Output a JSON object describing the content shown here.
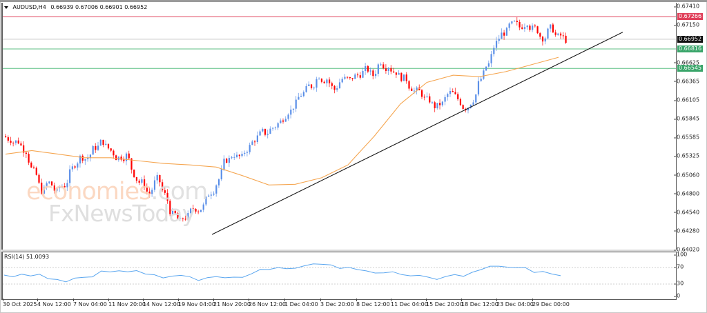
{
  "header": {
    "symbol_label": "AUDUSD,H4",
    "ohlc": "0.66939 0.67006 0.66901 0.66952",
    "collapse_icon": "triangle-down-icon"
  },
  "watermark": {
    "line1_main": "economies",
    "line1_suffix": ".com",
    "line2": "FxNewsToday"
  },
  "rsi_header": "RSI(14) 51.0093",
  "colors": {
    "bull": "#5b8fe8",
    "bear": "#ff0000",
    "ma": "#f5a651",
    "trendline": "#1a1a1a",
    "resistance": "#e0405a",
    "support": "#5cbf83",
    "current": "#c8c8c8",
    "rsi": "#5aa6ef"
  },
  "price_axis": {
    "ticks": [
      "0.67410",
      "0.67150",
      "0.66625",
      "0.66365",
      "0.66105",
      "0.65845",
      "0.65585",
      "0.65325",
      "0.65060",
      "0.64800",
      "0.64540",
      "0.64280",
      "0.64020"
    ],
    "labels": {
      "resistance": "0.67266",
      "current": "0.66952",
      "support1": "0.66816",
      "support2": "0.66545"
    }
  },
  "rsi_axis": {
    "ticks": [
      "100",
      "70",
      "30",
      "0"
    ]
  },
  "time_axis": {
    "ticks": [
      "30 Oct 2025",
      "4 Nov 12:00",
      "7 Nov 04:00",
      "11 Nov 20:00",
      "14 Nov 12:00",
      "19 Nov 04:00",
      "21 Nov 20:00",
      "26 Nov 12:00",
      "1 Dec 04:00",
      "3 Dec 20:00",
      "8 Dec 12:00",
      "11 Dec 04:00",
      "15 Dec 20:00",
      "18 Dec 12:00",
      "23 Dec 04:00",
      "29 Dec 00:00"
    ]
  },
  "chart_data": {
    "type": "candlestick",
    "title": "AUDUSD,H4",
    "ohlc_last": {
      "open": 0.66939,
      "high": 0.67006,
      "low": 0.66901,
      "close": 0.66952
    },
    "ylim": [
      0.6402,
      0.6746
    ],
    "horizontal_levels": [
      {
        "name": "resistance",
        "value": 0.67266,
        "color": "#e0405a"
      },
      {
        "name": "current",
        "value": 0.66952,
        "color": "#c8c8c8"
      },
      {
        "name": "support1",
        "value": 0.66816,
        "color": "#5cbf83"
      },
      {
        "name": "support2",
        "value": 0.66545,
        "color": "#5cbf83"
      }
    ],
    "trendline": {
      "from": {
        "x_label": "21 Nov 20:00",
        "price": 0.6423
      },
      "to": {
        "x_label": "after 29 Dec",
        "price": 0.6705
      }
    },
    "moving_average_approx": [
      0.6535,
      0.654,
      0.6535,
      0.653,
      0.653,
      0.6526,
      0.6522,
      0.652,
      0.6517,
      0.6505,
      0.6492,
      0.6493,
      0.6502,
      0.652,
      0.656,
      0.6605,
      0.6635,
      0.6645,
      0.6643,
      0.665,
      0.666,
      0.667
    ],
    "close_series_approx": [
      0.6556,
      0.6553,
      0.654,
      0.651,
      0.6485,
      0.6495,
      0.6482,
      0.6492,
      0.6515,
      0.653,
      0.653,
      0.6545,
      0.6553,
      0.654,
      0.653,
      0.6533,
      0.6508,
      0.6495,
      0.648,
      0.65,
      0.6478,
      0.645,
      0.644,
      0.6448,
      0.646,
      0.6462,
      0.6483,
      0.65,
      0.6528,
      0.6535,
      0.653,
      0.6545,
      0.6558,
      0.6565,
      0.6572,
      0.658,
      0.6595,
      0.6605,
      0.662,
      0.663,
      0.6645,
      0.664,
      0.6625,
      0.664,
      0.6638,
      0.6645,
      0.6652,
      0.6645,
      0.6665,
      0.6658,
      0.665,
      0.664,
      0.6628,
      0.6622,
      0.661,
      0.6602,
      0.6605,
      0.662,
      0.6612,
      0.66,
      0.6612,
      0.664,
      0.666,
      0.669,
      0.6705,
      0.6715,
      0.6712,
      0.672,
      0.671,
      0.6698,
      0.671,
      0.6698,
      0.6695
    ],
    "rsi": {
      "name": "RSI(14)",
      "value": 51.0093,
      "ylim": [
        0,
        100
      ],
      "levels": [
        70,
        30
      ],
      "values_approx": [
        50,
        47,
        52,
        49,
        52,
        44,
        40,
        37,
        45,
        46,
        48,
        60,
        59,
        63,
        61,
        64,
        55,
        52,
        44,
        48,
        50,
        47,
        40,
        44,
        48,
        44,
        47,
        46,
        56,
        64,
        66,
        69,
        67,
        70,
        73,
        77,
        78,
        75,
        68,
        70,
        66,
        62,
        58,
        57,
        60,
        53,
        48,
        50,
        45,
        43,
        47,
        51,
        50,
        60,
        67,
        72,
        75,
        71,
        70,
        68,
        57,
        62,
        55,
        51
      ]
    }
  }
}
